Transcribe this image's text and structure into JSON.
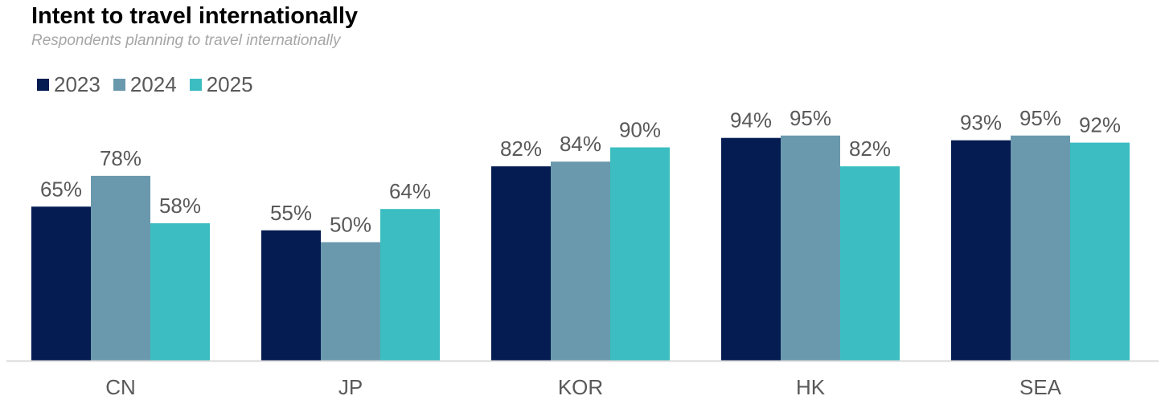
{
  "chart_data": {
    "type": "bar",
    "title": "Intent to travel internationally",
    "subtitle": "Respondents planning to travel internationally",
    "categories": [
      "CN",
      "JP",
      "KOR",
      "HK",
      "SEA"
    ],
    "series": [
      {
        "name": "2023",
        "color": "#041c52",
        "values": [
          65,
          55,
          82,
          94,
          93
        ],
        "labels": [
          "65%",
          "55%",
          "82%",
          "94%",
          "93%"
        ]
      },
      {
        "name": "2024",
        "color": "#6a99ae",
        "values": [
          78,
          50,
          84,
          95,
          95
        ],
        "labels": [
          "78%",
          "50%",
          "84%",
          "95%",
          "95%"
        ]
      },
      {
        "name": "2025",
        "color": "#3bbdc1",
        "values": [
          58,
          64,
          90,
          82,
          92
        ],
        "labels": [
          "58%",
          "64%",
          "90%",
          "82%",
          "92%"
        ]
      }
    ],
    "ylim": [
      0,
      100
    ],
    "unit": "%",
    "grid": false,
    "legend_position": "top-left"
  }
}
